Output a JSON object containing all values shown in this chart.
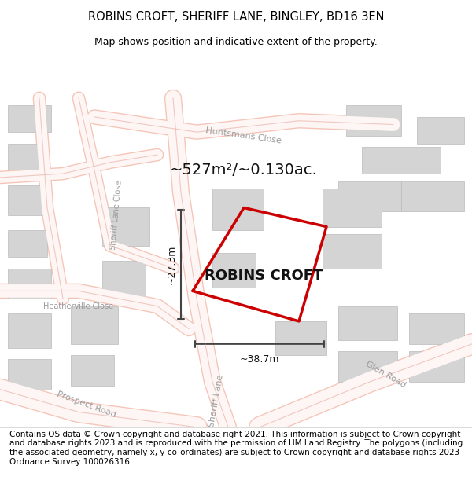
{
  "title": "ROBINS CROFT, SHERIFF LANE, BINGLEY, BD16 3EN",
  "subtitle": "Map shows position and indicative extent of the property.",
  "footer": "Contains OS data © Crown copyright and database right 2021. This information is subject to Crown copyright and database rights 2023 and is reproduced with the permission of HM Land Registry. The polygons (including the associated geometry, namely x, y co-ordinates) are subject to Crown copyright and database rights 2023 Ordnance Survey 100026316.",
  "area_label": "~527m²/~0.130ac.",
  "property_name": "ROBINS CROFT",
  "width_label": "~38.7m",
  "height_label": "~27.3m",
  "bg_color": "#f5f5f5",
  "map_bg": "#ffffff",
  "road_color": "#f0c0b0",
  "building_color": "#d8d8d8",
  "road_line_color": "#e8a090",
  "property_outline_color": "#cc0000",
  "street_label_color": "#888888",
  "dim_line_color": "#555555",
  "title_fontsize": 10.5,
  "subtitle_fontsize": 9,
  "footer_fontsize": 7.5,
  "area_label_fontsize": 14,
  "property_name_fontsize": 13
}
